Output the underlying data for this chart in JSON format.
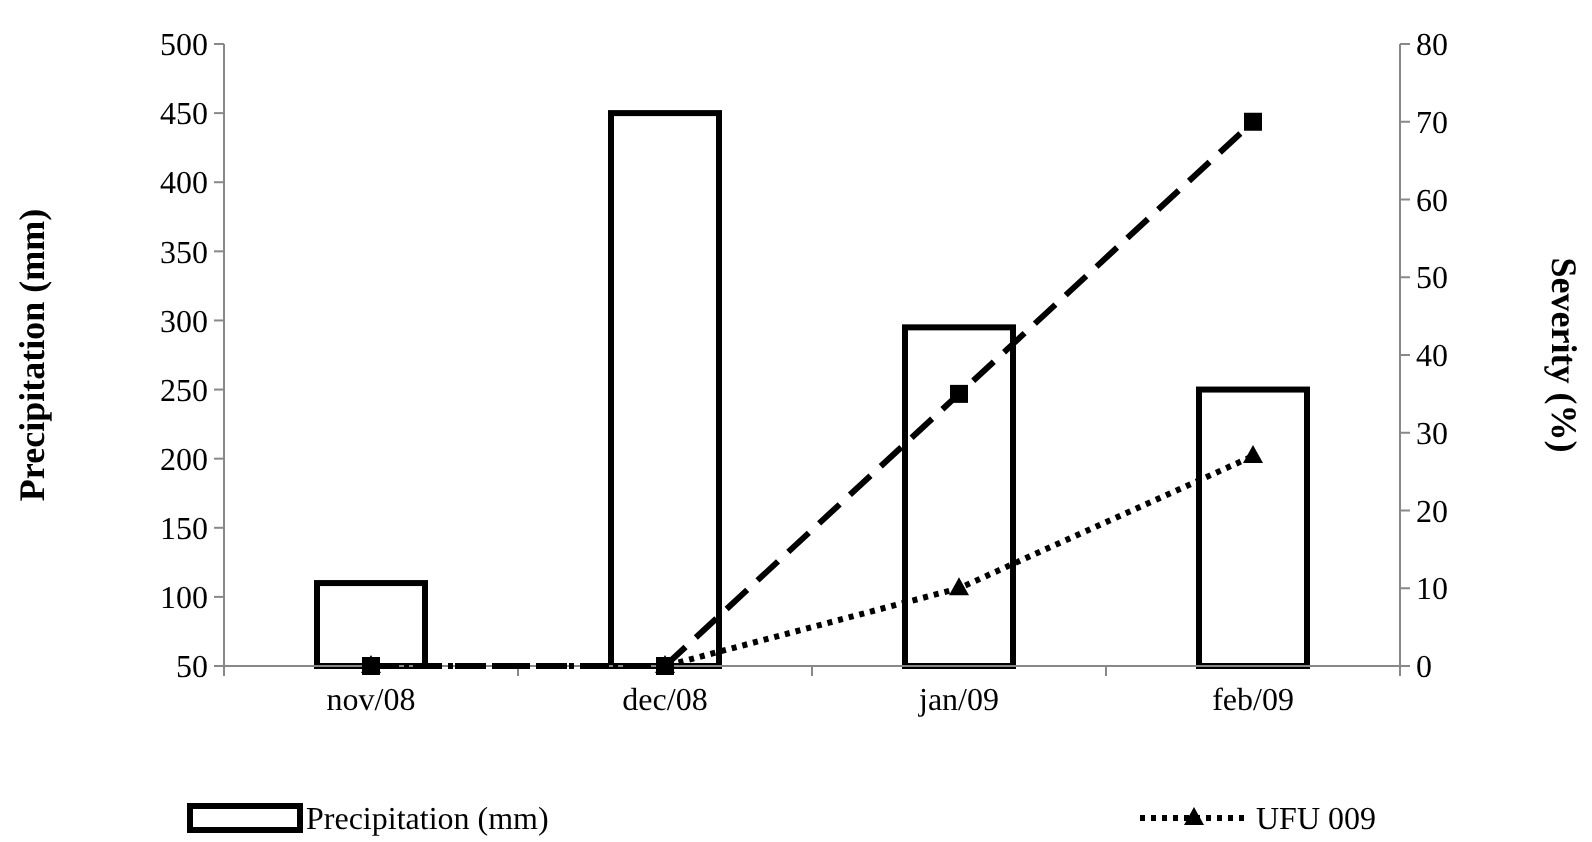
{
  "chart_data": {
    "type": "bar",
    "ylabel": "Precipitation (mm)",
    "y2label": "Severity (%)",
    "categories": [
      "nov/08",
      "dec/08",
      "jan/09",
      "feb/09"
    ],
    "series": [
      {
        "name": "Precipitation (mm)",
        "color": "#000000",
        "values": [
          110,
          450,
          295,
          250
        ]
      },
      {
        "type": "line",
        "axis": "y2",
        "color": "#000000",
        "marker": "square",
        "line_style": "dashed",
        "values": [
          0,
          0,
          35,
          70
        ]
      },
      {
        "name": "UFU 009",
        "type": "line",
        "axis": "y2",
        "color": "#000000",
        "marker": "triangle",
        "line_style": "dotted",
        "values": [
          0,
          0,
          10,
          27
        ]
      }
    ],
    "ylim": [
      50,
      500
    ],
    "yticks": [
      50,
      100,
      150,
      200,
      250,
      300,
      350,
      400,
      450,
      500
    ],
    "y2lim": [
      0,
      80
    ],
    "y2ticks": [
      0,
      10,
      20,
      30,
      40,
      50,
      60,
      70,
      80
    ],
    "grid": false,
    "legend": "bottom"
  }
}
